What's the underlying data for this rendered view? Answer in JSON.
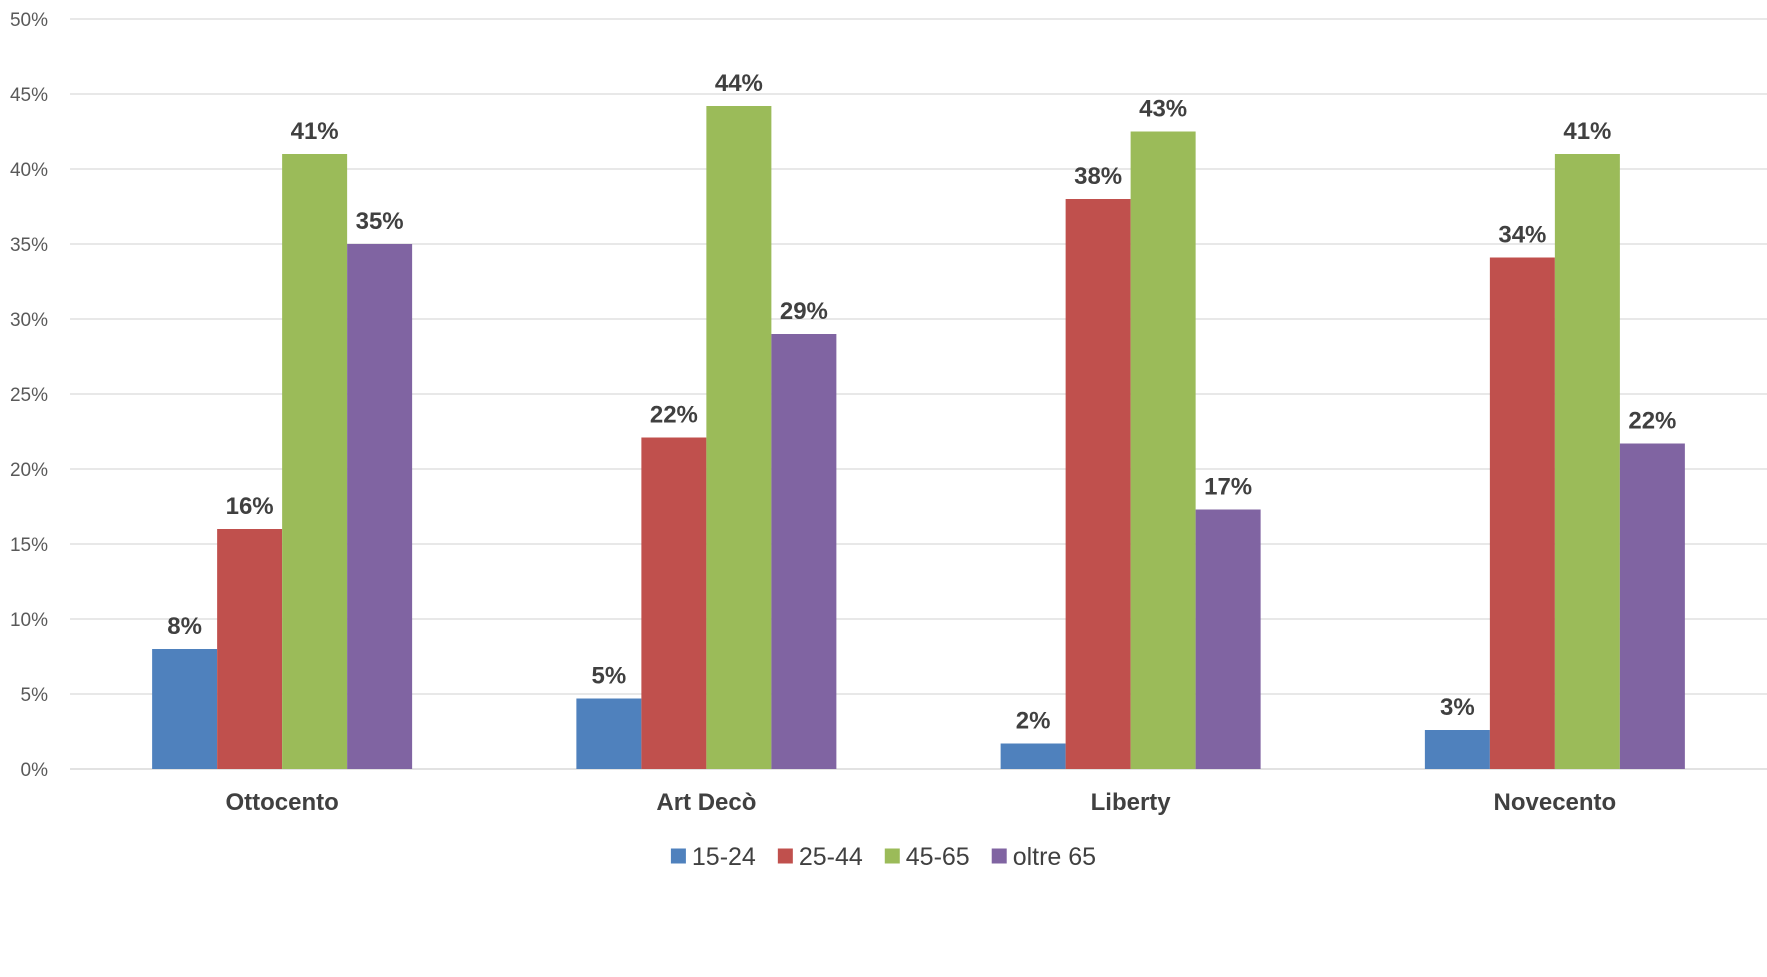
{
  "chart_data": {
    "type": "bar",
    "title": "",
    "xlabel": "",
    "ylabel": "",
    "categories": [
      "Ottocento",
      "Art Decò",
      "Liberty",
      "Novecento"
    ],
    "series": [
      {
        "name": "15-24",
        "color": "#4f81bd",
        "values": [
          8,
          4.7,
          1.7,
          2.6
        ],
        "labels": [
          "8%",
          "5%",
          "2%",
          "3%"
        ]
      },
      {
        "name": "25-44",
        "color": "#c0504d",
        "values": [
          16,
          22.1,
          38,
          34.1
        ],
        "labels": [
          "16%",
          "22%",
          "38%",
          "34%"
        ]
      },
      {
        "name": "45-65",
        "color": "#9bbb59",
        "values": [
          41,
          44.2,
          42.5,
          41
        ],
        "labels": [
          "41%",
          "44%",
          "43%",
          "41%"
        ]
      },
      {
        "name": "oltre 65",
        "color": "#8064a2",
        "values": [
          35,
          29,
          17.3,
          21.7
        ],
        "labels": [
          "35%",
          "29%",
          "17%",
          "22%"
        ]
      }
    ],
    "ylim": [
      0,
      50
    ],
    "yticks": [
      0,
      5,
      10,
      15,
      20,
      25,
      30,
      35,
      40,
      45,
      50
    ],
    "ytick_labels": [
      "0%",
      "5%",
      "10%",
      "15%",
      "20%",
      "25%",
      "30%",
      "35%",
      "40%",
      "45%",
      "50%"
    ],
    "grid": true,
    "legend_position": "bottom"
  }
}
